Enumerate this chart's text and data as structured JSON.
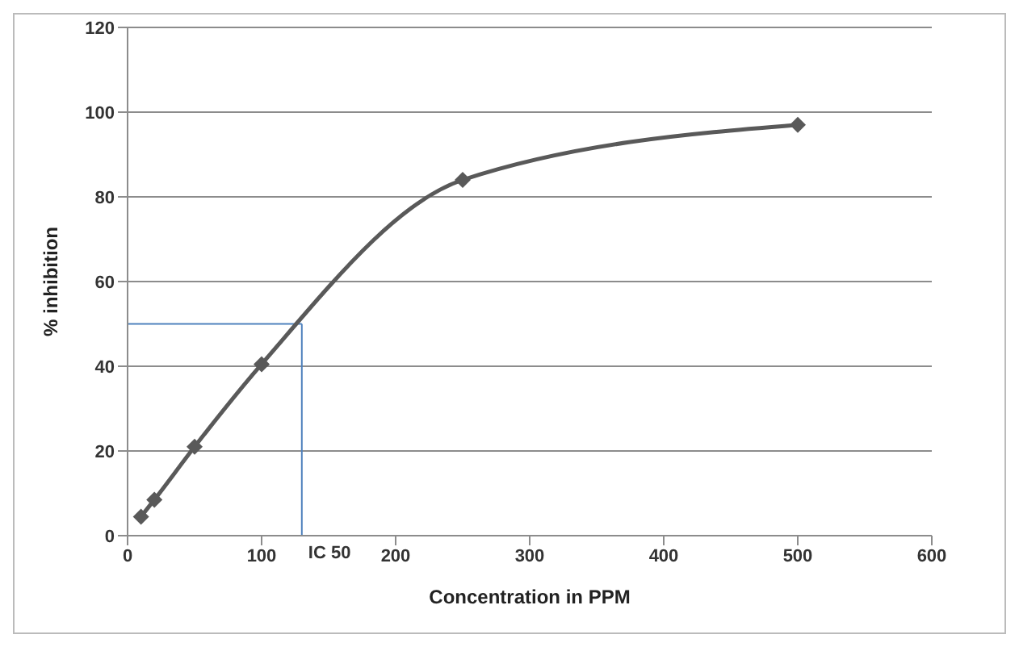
{
  "chart_data": {
    "type": "line",
    "xlabel": "Concentration in PPM",
    "ylabel": "% inhibition",
    "x": [
      10,
      20,
      50,
      100,
      250,
      500
    ],
    "series": [
      {
        "color": "#595959",
        "values": [
          4.5,
          8.5,
          21,
          40.5,
          84,
          97
        ]
      }
    ],
    "xlim": [
      0,
      600
    ],
    "xticks": [
      0,
      100,
      200,
      300,
      400,
      500,
      600
    ],
    "ylim": [
      0,
      120
    ],
    "yticks": [
      0,
      20,
      40,
      60,
      80,
      100,
      120
    ],
    "grid": "y",
    "marker": "diamond",
    "line_style": "solid",
    "ref_lines": [
      {
        "axis": "x",
        "value": 130,
        "label": "IC 50",
        "color": "#4f81bd"
      },
      {
        "axis": "y",
        "value": 50,
        "color": "#4f81bd"
      }
    ]
  }
}
